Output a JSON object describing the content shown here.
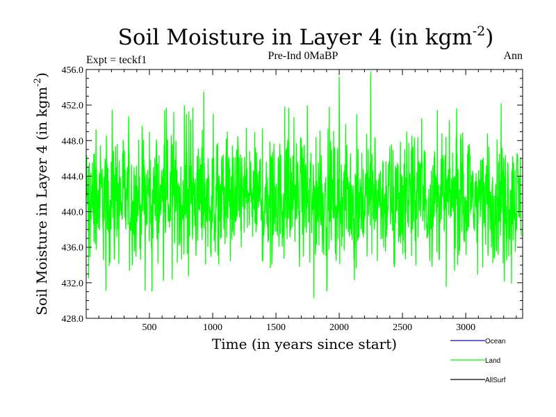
{
  "chart_data": {
    "type": "line",
    "title": "Soil Moisture in Layer 4 (in kgm",
    "title_sup": "-2",
    "title_end": ")",
    "subtitle_left": "Expt = teckf1",
    "subtitle_center": "Pre-Ind 0MaBP",
    "subtitle_right": "Ann",
    "xlabel": "Time (in years since start)",
    "ylabel": "Soil Moisture in Layer 4 (in kgm",
    "ylabel_sup": "-2",
    "ylabel_end": ")",
    "xlim": [
      0,
      3450
    ],
    "ylim": [
      428.0,
      456.0
    ],
    "x_ticks": [
      500,
      1000,
      1500,
      2000,
      2500,
      3000
    ],
    "x_tick_labels": [
      "500",
      "1000",
      "1500",
      "2000",
      "2500",
      "3000"
    ],
    "y_ticks": [
      428.0,
      432.0,
      436.0,
      440.0,
      444.0,
      448.0,
      452.0,
      456.0
    ],
    "y_tick_labels": [
      "428.0",
      "432.0",
      "436.0",
      "440.0",
      "444.0",
      "448.0",
      "452.0",
      "456.0"
    ],
    "series": [
      {
        "name": "Ocean",
        "color": "#0000ff",
        "values": []
      },
      {
        "name": "Land",
        "color": "#00ff00",
        "mean": 441.5,
        "typical_range": [
          435.0,
          448.5
        ],
        "min": 430.3,
        "max": 455.8,
        "notable_points": [
          [
            20,
            432.5
          ],
          [
            520,
            431.0
          ],
          [
            930,
            453.5
          ],
          [
            1800,
            430.3
          ],
          [
            2000,
            455.2
          ],
          [
            2250,
            455.8
          ],
          [
            3280,
            452.2
          ]
        ]
      },
      {
        "name": "AllSurf",
        "color": "#000000",
        "values": []
      }
    ],
    "legend": [
      "Ocean",
      "Land",
      "AllSurf"
    ],
    "legend_position": "bottom-right"
  }
}
